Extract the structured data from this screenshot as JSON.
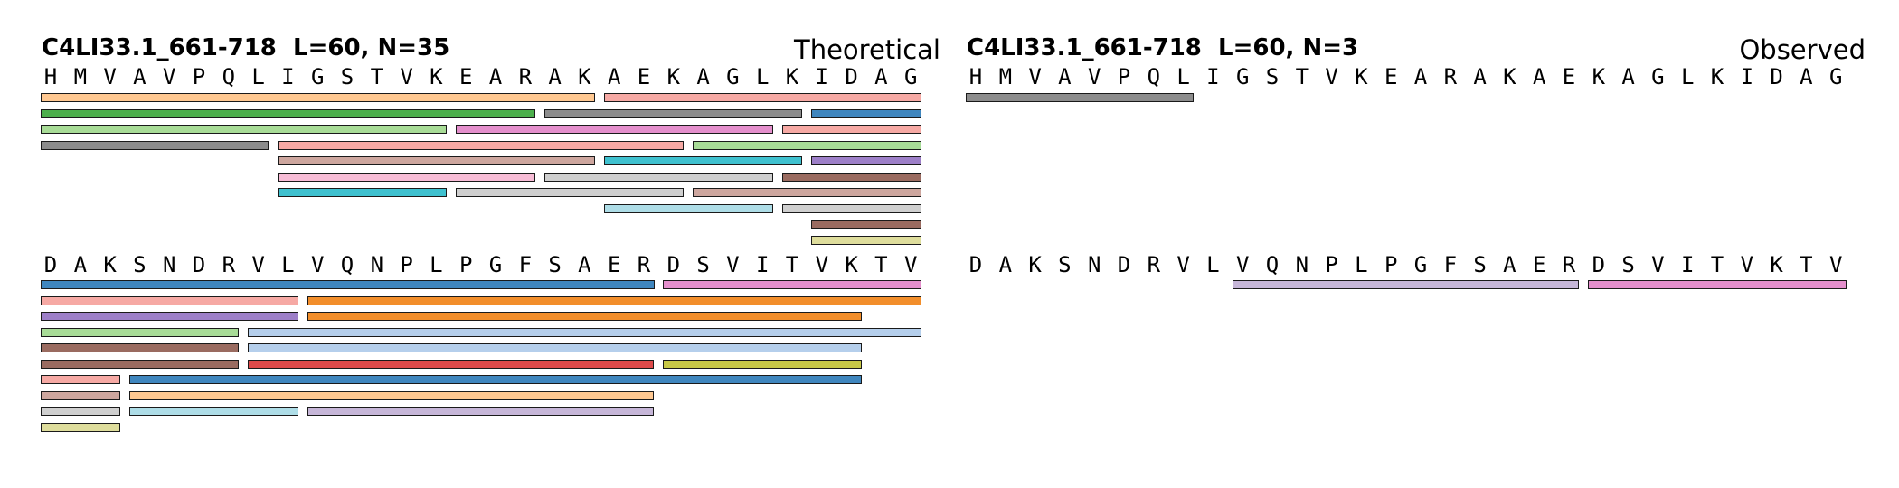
{
  "palette": {
    "blue": "#3f86be",
    "light_blue": "#b5cfec",
    "orange": "#f28e2b",
    "light_orange": "#ffc891",
    "green": "#4caf4c",
    "light_green": "#a8dc97",
    "red": "#de4a4a",
    "pink_light": "#f6a9a4",
    "purple": "#9d7fc8",
    "lavender": "#c6b6d8",
    "brown": "#9a6b60",
    "tan": "#cda69e",
    "magenta": "#e48fcc",
    "light_pink": "#f7bcd6",
    "gray": "#8c8c8c",
    "light_gray": "#cfcfcf",
    "olive": "#c9c947",
    "khaki": "#dedd9c",
    "cyan": "#3fc1cf",
    "light_cyan": "#aedde7"
  },
  "panels": [
    {
      "id": "theoretical",
      "title": "C4LI33.1_661-718  L=60, N=35",
      "label": "Theoretical",
      "blocks": [
        {
          "sequence": "HMVAVPQLIGSTVKEARAKAEKAGLKIDAG",
          "peptides": [
            {
              "start": 1,
              "end": 19,
              "row": 0,
              "color": "light_orange"
            },
            {
              "start": 20,
              "end": 30,
              "row": 0,
              "color": "pink_light"
            },
            {
              "start": 1,
              "end": 17,
              "row": 1,
              "color": "green"
            },
            {
              "start": 18,
              "end": 26,
              "row": 1,
              "color": "gray"
            },
            {
              "start": 27,
              "end": 30,
              "row": 1,
              "color": "blue"
            },
            {
              "start": 1,
              "end": 14,
              "row": 2,
              "color": "light_green"
            },
            {
              "start": 15,
              "end": 25,
              "row": 2,
              "color": "magenta"
            },
            {
              "start": 26,
              "end": 30,
              "row": 2,
              "color": "pink_light"
            },
            {
              "start": 1,
              "end": 8,
              "row": 3,
              "color": "gray"
            },
            {
              "start": 9,
              "end": 22,
              "row": 3,
              "color": "pink_light"
            },
            {
              "start": 23,
              "end": 30,
              "row": 3,
              "color": "light_green"
            },
            {
              "start": 9,
              "end": 19,
              "row": 4,
              "color": "tan"
            },
            {
              "start": 20,
              "end": 26,
              "row": 4,
              "color": "cyan"
            },
            {
              "start": 27,
              "end": 30,
              "row": 4,
              "color": "purple"
            },
            {
              "start": 9,
              "end": 17,
              "row": 5,
              "color": "light_pink"
            },
            {
              "start": 18,
              "end": 25,
              "row": 5,
              "color": "light_gray"
            },
            {
              "start": 26,
              "end": 30,
              "row": 5,
              "color": "brown"
            },
            {
              "start": 9,
              "end": 14,
              "row": 6,
              "color": "cyan"
            },
            {
              "start": 15,
              "end": 22,
              "row": 6,
              "color": "light_gray"
            },
            {
              "start": 23,
              "end": 30,
              "row": 6,
              "color": "tan"
            },
            {
              "start": 20,
              "end": 25,
              "row": 7,
              "color": "light_cyan"
            },
            {
              "start": 26,
              "end": 30,
              "row": 7,
              "color": "light_gray"
            },
            {
              "start": 27,
              "end": 30,
              "row": 8,
              "color": "brown"
            },
            {
              "start": 27,
              "end": 30,
              "row": 9,
              "color": "khaki"
            }
          ]
        },
        {
          "sequence": "DAKSNDRVLVQNPLPGFSAERDSVITVKTV",
          "peptides": [
            {
              "start": 1,
              "end": 21,
              "row": 0,
              "color": "blue"
            },
            {
              "start": 22,
              "end": 30,
              "row": 0,
              "color": "magenta"
            },
            {
              "start": 1,
              "end": 9,
              "row": 1,
              "color": "pink_light"
            },
            {
              "start": 10,
              "end": 30,
              "row": 1,
              "color": "orange"
            },
            {
              "start": 1,
              "end": 9,
              "row": 2,
              "color": "purple"
            },
            {
              "start": 10,
              "end": 28,
              "row": 2,
              "color": "orange"
            },
            {
              "start": 1,
              "end": 7,
              "row": 3,
              "color": "light_green"
            },
            {
              "start": 8,
              "end": 30,
              "row": 3,
              "color": "light_blue"
            },
            {
              "start": 1,
              "end": 7,
              "row": 4,
              "color": "brown"
            },
            {
              "start": 8,
              "end": 28,
              "row": 4,
              "color": "light_blue"
            },
            {
              "start": 1,
              "end": 7,
              "row": 5,
              "color": "brown"
            },
            {
              "start": 8,
              "end": 21,
              "row": 5,
              "color": "red"
            },
            {
              "start": 22,
              "end": 28,
              "row": 5,
              "color": "olive"
            },
            {
              "start": 1,
              "end": 3,
              "row": 6,
              "color": "pink_light"
            },
            {
              "start": 4,
              "end": 28,
              "row": 6,
              "color": "blue"
            },
            {
              "start": 1,
              "end": 3,
              "row": 7,
              "color": "tan"
            },
            {
              "start": 4,
              "end": 21,
              "row": 7,
              "color": "light_orange"
            },
            {
              "start": 1,
              "end": 3,
              "row": 8,
              "color": "light_gray"
            },
            {
              "start": 4,
              "end": 9,
              "row": 8,
              "color": "light_cyan"
            },
            {
              "start": 10,
              "end": 21,
              "row": 8,
              "color": "lavender"
            },
            {
              "start": 1,
              "end": 3,
              "row": 9,
              "color": "khaki"
            }
          ]
        }
      ]
    },
    {
      "id": "observed",
      "title": "C4LI33.1_661-718  L=60, N=3",
      "label": "Observed",
      "blocks": [
        {
          "sequence": "HMVAVPQLIGSTVKEARAKAEKAGLKIDAG",
          "peptides": [
            {
              "start": 1,
              "end": 8,
              "row": 0,
              "color": "gray"
            }
          ]
        },
        {
          "sequence": "DAKSNDRVLVQNPLPGFSAERDSVITVKTV",
          "peptides": [
            {
              "start": 10,
              "end": 21,
              "row": 0,
              "color": "lavender"
            },
            {
              "start": 22,
              "end": 30,
              "row": 0,
              "color": "magenta"
            }
          ]
        }
      ]
    }
  ]
}
